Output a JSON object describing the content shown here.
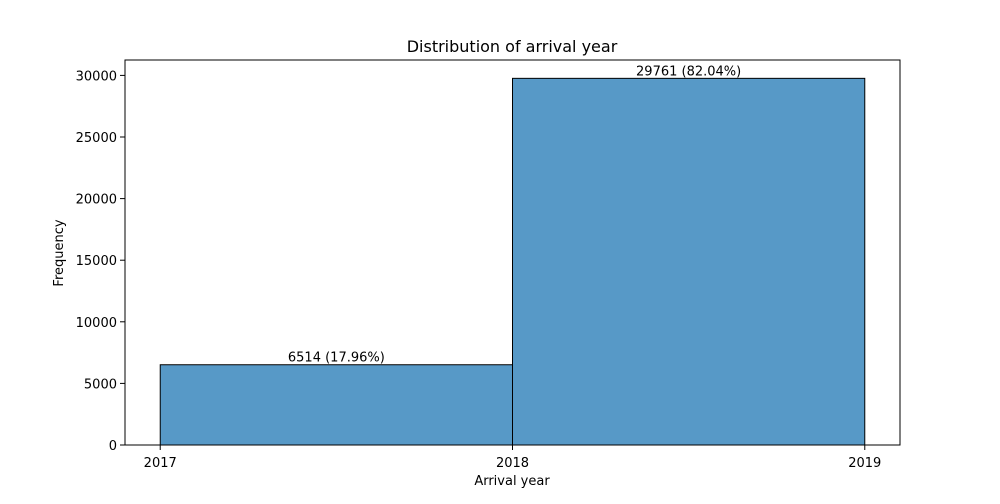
{
  "chart_data": {
    "type": "bar",
    "title": "Distribution of arrival year",
    "xlabel": "Arrival year",
    "ylabel": "Frequency",
    "bins": [
      {
        "start": 2017,
        "end": 2018,
        "value": 6514,
        "label": "6514 (17.96%)"
      },
      {
        "start": 2018,
        "end": 2019,
        "value": 29761,
        "label": "29761 (82.04%)"
      }
    ],
    "xlim": [
      2016.9,
      2019.1
    ],
    "ylim": [
      0,
      31250
    ],
    "xticks": [
      {
        "value": 2017,
        "label": "2017"
      },
      {
        "value": 2018,
        "label": "2018"
      },
      {
        "value": 2019,
        "label": "2019"
      }
    ],
    "yticks": [
      {
        "value": 0,
        "label": "0"
      },
      {
        "value": 5000,
        "label": "5000"
      },
      {
        "value": 10000,
        "label": "10000"
      },
      {
        "value": 15000,
        "label": "15000"
      },
      {
        "value": 20000,
        "label": "20000"
      },
      {
        "value": 25000,
        "label": "25000"
      },
      {
        "value": 30000,
        "label": "30000"
      }
    ],
    "bar_color": "#5799c7",
    "bar_edge_color": "#000000",
    "grid": false,
    "legend": "none"
  }
}
